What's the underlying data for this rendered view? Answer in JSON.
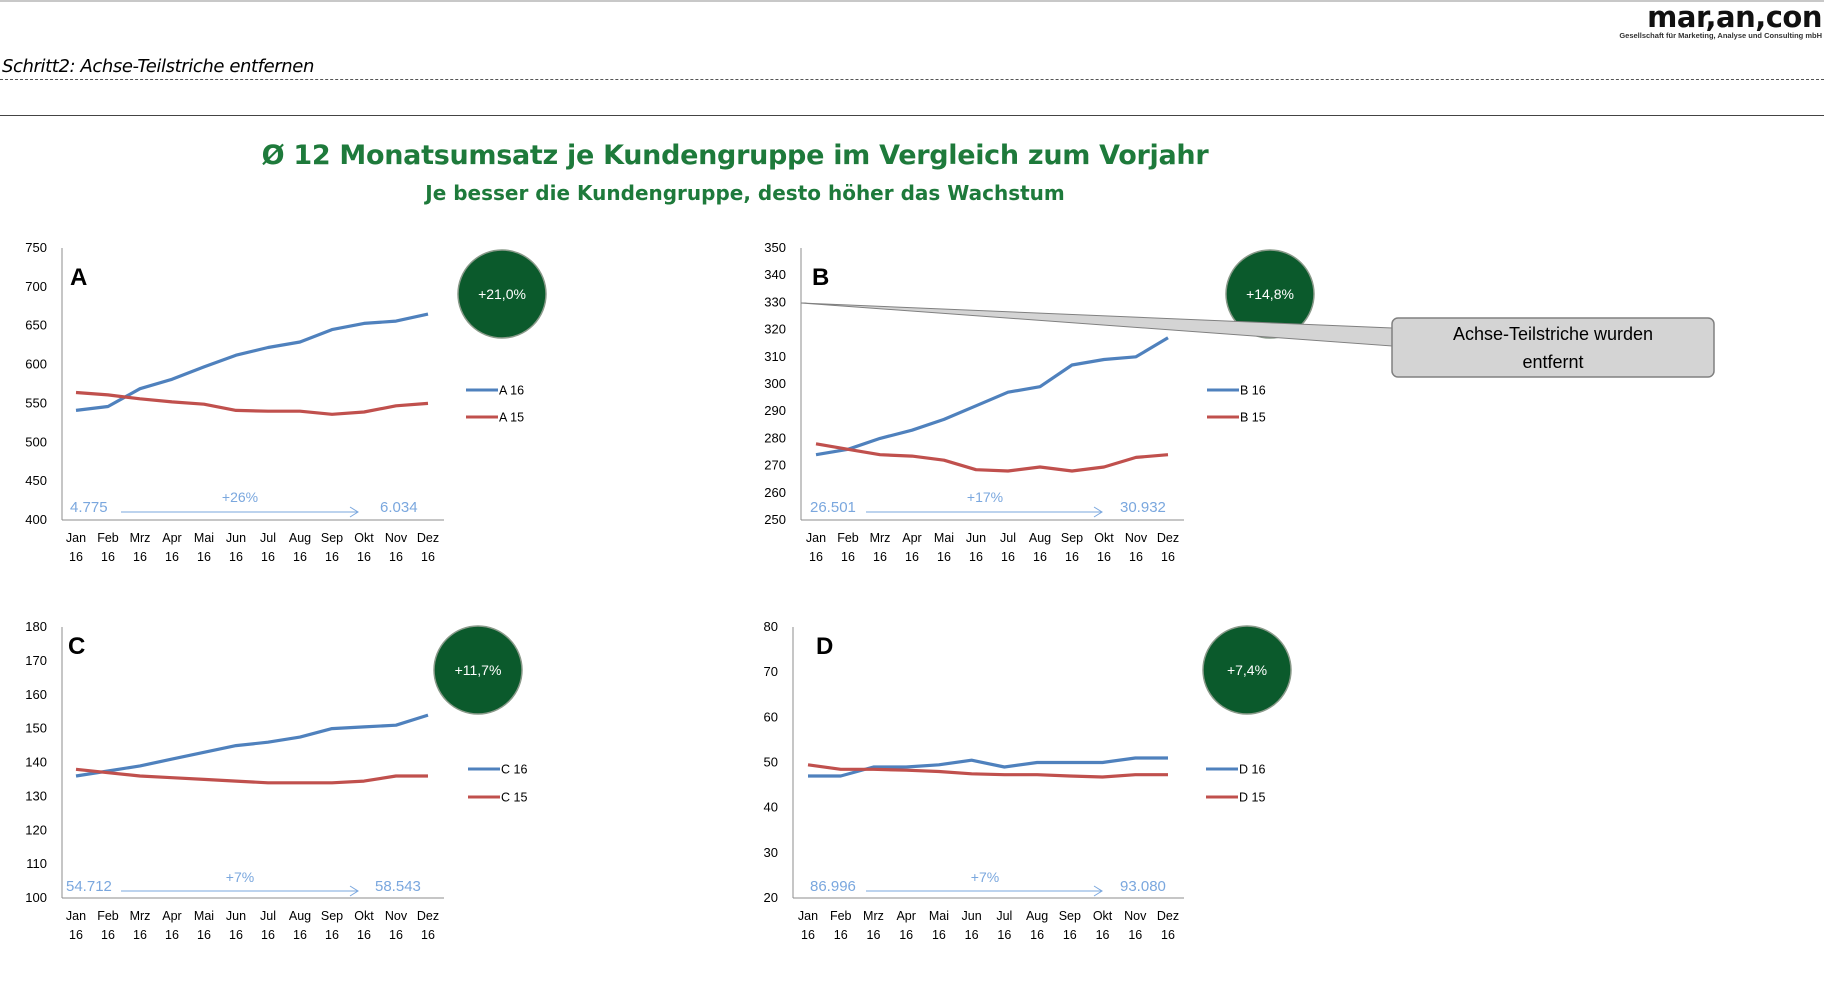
{
  "header": {
    "logo_text": "mar,an,con",
    "logo_sub": "Gesellschaft für Marketing, Analyse und Consulting mbH",
    "step_title": "Schritt2: Achse-Teilstriche entfernen"
  },
  "title": "Ø 12 Monatsumsatz je Kundengruppe im Vergleich zum Vorjahr",
  "subtitle": "Je besser die Kundengruppe, desto höher das Wachstum",
  "colors": {
    "series_current": "#4f81bd",
    "series_prev": "#c0504d",
    "badge": "#0b5a2c",
    "arrow": "#7aa7de",
    "title": "#1e7a3b"
  },
  "callout": {
    "text_line1": "Achse-Teilstriche wurden",
    "text_line2": "entfernt"
  },
  "chart_data": [
    {
      "type": "line",
      "label": "A",
      "badge": "+21,0%",
      "categories": [
        "Jan 16",
        "Feb 16",
        "Mrz 16",
        "Apr 16",
        "Mai 16",
        "Jun 16",
        "Jul 16",
        "Aug 16",
        "Sep 16",
        "Okt 16",
        "Nov 16",
        "Dez 16"
      ],
      "yticks": [
        400,
        450,
        500,
        550,
        600,
        650,
        700,
        750
      ],
      "ylim": [
        400,
        750
      ],
      "series": [
        {
          "name": "A 16",
          "values": [
            541,
            546,
            569,
            581,
            597,
            612,
            622,
            629,
            645,
            653,
            656,
            665
          ]
        },
        {
          "name": "A 15",
          "values": [
            564,
            561,
            556,
            552,
            549,
            541,
            540,
            540,
            536,
            539,
            547,
            550
          ]
        }
      ],
      "arrow": {
        "start": "4.775",
        "end": "6.034",
        "change": "+26%"
      },
      "grid": false,
      "legend": "right"
    },
    {
      "type": "line",
      "label": "B",
      "badge": "+14,8%",
      "categories": [
        "Jan 16",
        "Feb 16",
        "Mrz 16",
        "Apr 16",
        "Mai 16",
        "Jun 16",
        "Jul 16",
        "Aug 16",
        "Sep 16",
        "Okt 16",
        "Nov 16",
        "Dez 16"
      ],
      "yticks": [
        250,
        260,
        270,
        280,
        290,
        300,
        310,
        320,
        330,
        340,
        350
      ],
      "ylim": [
        250,
        350
      ],
      "series": [
        {
          "name": "B 16",
          "values": [
            274,
            276,
            280,
            283,
            287,
            292,
            297,
            299,
            307,
            309,
            310,
            317
          ]
        },
        {
          "name": "B 15",
          "values": [
            278,
            276,
            274,
            273.5,
            272,
            268.5,
            268,
            269.5,
            268,
            269.5,
            273,
            274
          ]
        }
      ],
      "arrow": {
        "start": "26.501",
        "end": "30.932",
        "change": "+17%"
      },
      "grid": false,
      "legend": "right"
    },
    {
      "type": "line",
      "label": "C",
      "badge": "+11,7%",
      "categories": [
        "Jan 16",
        "Feb 16",
        "Mrz 16",
        "Apr 16",
        "Mai 16",
        "Jun 16",
        "Jul 16",
        "Aug 16",
        "Sep 16",
        "Okt 16",
        "Nov 16",
        "Dez 16"
      ],
      "yticks": [
        100,
        110,
        120,
        130,
        140,
        150,
        160,
        170,
        180
      ],
      "ylim": [
        100,
        180
      ],
      "series": [
        {
          "name": "C 16",
          "values": [
            136,
            137.5,
            139,
            141,
            143,
            145,
            146,
            147.5,
            150,
            150.5,
            151,
            154
          ]
        },
        {
          "name": "C 15",
          "values": [
            138,
            137,
            136,
            135.5,
            135,
            134.5,
            134,
            134,
            134,
            134.5,
            136,
            136
          ]
        }
      ],
      "arrow": {
        "start": "54.712",
        "end": "58.543",
        "change": "+7%"
      },
      "grid": false,
      "legend": "right"
    },
    {
      "type": "line",
      "label": "D",
      "badge": "+7,4%",
      "categories": [
        "Jan 16",
        "Feb 16",
        "Mrz 16",
        "Apr 16",
        "Mai 16",
        "Jun 16",
        "Jul 16",
        "Aug 16",
        "Sep 16",
        "Okt 16",
        "Nov 16",
        "Dez 16"
      ],
      "yticks": [
        20,
        30,
        40,
        50,
        60,
        70,
        80
      ],
      "ylim": [
        20,
        80
      ],
      "series": [
        {
          "name": "D 16",
          "values": [
            47,
            47,
            49,
            49,
            49.5,
            50.5,
            49,
            50,
            50,
            50,
            51,
            51
          ]
        },
        {
          "name": "D 15",
          "values": [
            49.5,
            48.5,
            48.5,
            48.3,
            48,
            47.5,
            47.3,
            47.3,
            47,
            46.8,
            47.3,
            47.3
          ]
        }
      ],
      "arrow": {
        "start": "86.996",
        "end": "93.080",
        "change": "+7%"
      },
      "grid": false,
      "legend": "right"
    }
  ]
}
